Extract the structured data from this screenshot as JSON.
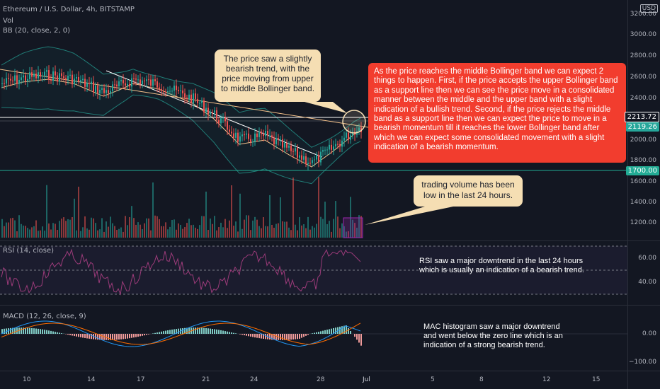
{
  "header": {
    "symbol": "Ethereum / U.S. Dollar, 4h, BITSTAMP",
    "vol_label": "Vol",
    "bb_label": "BB (20, close, 2, 0)",
    "rsi_label": "RSI (14, close)",
    "macd_label": "MACD (12, 26, close, 9)"
  },
  "axis": {
    "currency": "USD",
    "price_ticks": [
      "3200.00",
      "3000.00",
      "2800.00",
      "2600.00",
      "2400.00",
      "2000.00",
      "1800.00",
      "1600.00",
      "1400.00",
      "1200.00"
    ],
    "current_price": "2213.72",
    "bb_mid": "2119.26",
    "support_price": "1700.00",
    "rsi_ticks": [
      "60.00",
      "40.00"
    ],
    "macd_ticks": [
      "0.00",
      "−100.00"
    ],
    "x_ticks": [
      "10",
      "14",
      "17",
      "21",
      "24",
      "28",
      "Jul",
      "5",
      "8",
      "12",
      "15"
    ]
  },
  "annotations": {
    "trend_callout": "The price saw a slightly bearish trend, with the price moving from upper to middle Bollinger band.",
    "bollinger_callout": "As the price reaches the middle Bollinger band we can expect 2 things to happen. First, if the price accepts the upper Bollinger band as a support line then we can see the price move in a consolidated manner between the middle and the upper band with a slight indication of a bullish trend. Second, if the price rejects the middle band as a support line then we can expect the price to move in a bearish momentum till it reaches the lower Bollinger band after which we can expect some consolidated movement with a slight indication of a bearish momentum.",
    "volume_callout": "trading volume has been low in the last 24 hours.",
    "rsi_note_1": "RSI saw a major downtrend in the last 24 hours",
    "rsi_note_2": "which is usually an indication of a bearish trend.",
    "macd_note_1": "MAC histogram saw a major downtrend",
    "macd_note_2": "and went below the zero line which is an",
    "macd_note_3": "indication of a strong bearish trend."
  },
  "colors": {
    "background": "#131722",
    "up": "#26a69a",
    "down": "#ef5350",
    "callout_bg": "#f5deb3",
    "callout_red": "#f23d2e",
    "rsi": "#9c3b7a",
    "macd": "#2196f3",
    "signal": "#ff6d00"
  }
}
